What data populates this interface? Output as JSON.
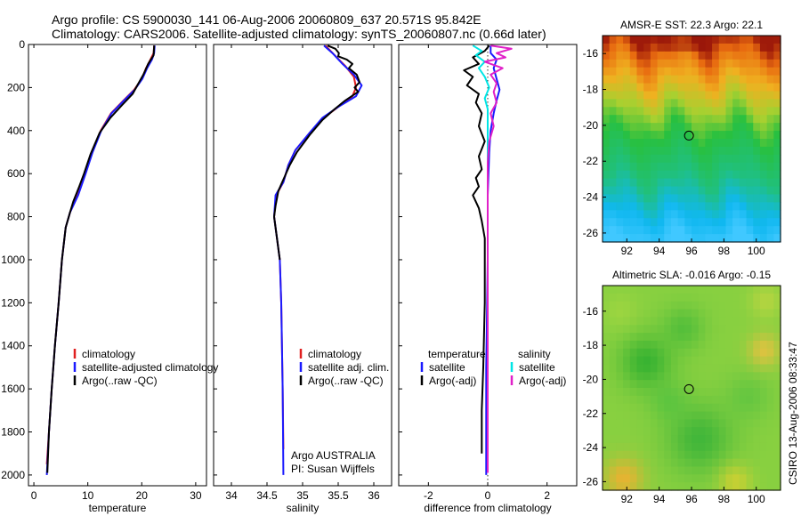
{
  "header": {
    "line1": "Argo profile: CS 5900030_141 06-Aug-2006 20060809_637 20.571S 95.842E",
    "line2": "Climatology: CARS2006. Satellite-adjusted climatology: synTS_20060807.nc (0.66d later)"
  },
  "footer_stamp": "CSIRO 13-Aug-2006 08:33:47",
  "colors": {
    "climatology": "#e02020",
    "satellite": "#1a1aff",
    "argo": "#000000",
    "salinity_sat": "#00e5e5",
    "salinity_argo": "#e020c8"
  },
  "chart_data": [
    {
      "type": "line",
      "xlabel": "temperature",
      "xlim": [
        -1,
        32
      ],
      "ylim": [
        2050,
        0
      ],
      "xticks": [
        "0",
        "10",
        "20",
        "30"
      ],
      "xtick_values": [
        0,
        10,
        20,
        30
      ],
      "yticks": [
        "0",
        "200",
        "400",
        "600",
        "800",
        "1000",
        "1200",
        "1400",
        "1600",
        "1800",
        "2000"
      ],
      "ytick_values": [
        0,
        200,
        400,
        600,
        800,
        1000,
        1200,
        1400,
        1600,
        1800,
        2000
      ],
      "legend": {
        "placement": "lower-right",
        "entries": [
          {
            "name": "climatology",
            "color": "#e02020"
          },
          {
            "name": "satellite-adjusted climatology",
            "color": "#1a1aff"
          },
          {
            "name": "Argo(..raw -QC)",
            "color": "#000000"
          }
        ]
      },
      "series": [
        {
          "name": "climatology",
          "color": "#e02020",
          "points": [
            [
              22.3,
              5
            ],
            [
              22.2,
              40
            ],
            [
              21.6,
              70
            ],
            [
              20.8,
              110
            ],
            [
              20,
              160
            ],
            [
              18.6,
              210
            ],
            [
              16.6,
              260
            ],
            [
              14.3,
              320
            ],
            [
              12.4,
              400
            ],
            [
              10.8,
              500
            ],
            [
              9.5,
              600
            ],
            [
              8.1,
              700
            ],
            [
              6.7,
              780
            ],
            [
              5.9,
              850
            ],
            [
              5.2,
              1000
            ],
            [
              4.6,
              1200
            ],
            [
              3.9,
              1400
            ],
            [
              3.3,
              1600
            ],
            [
              2.8,
              1800
            ],
            [
              2.4,
              1950
            ]
          ]
        },
        {
          "name": "satellite-adjusted climatology",
          "color": "#1a1aff",
          "points": [
            [
              22.4,
              5
            ],
            [
              22.3,
              40
            ],
            [
              21.9,
              70
            ],
            [
              21,
              110
            ],
            [
              20.1,
              160
            ],
            [
              18.7,
              210
            ],
            [
              16.7,
              260
            ],
            [
              14.4,
              320
            ],
            [
              12.5,
              400
            ],
            [
              10.9,
              500
            ],
            [
              9.6,
              600
            ],
            [
              8.2,
              700
            ],
            [
              6.7,
              780
            ],
            [
              5.9,
              850
            ],
            [
              5.2,
              1000
            ],
            [
              4.6,
              1200
            ],
            [
              3.9,
              1400
            ],
            [
              3.3,
              1600
            ],
            [
              2.8,
              1800
            ],
            [
              2.4,
              2000
            ]
          ]
        },
        {
          "name": "Argo(..raw -QC)",
          "color": "#000000",
          "points": [
            [
              22.3,
              5
            ],
            [
              22.2,
              50
            ],
            [
              21.2,
              90
            ],
            [
              20.3,
              140
            ],
            [
              19.4,
              180
            ],
            [
              18.3,
              230
            ],
            [
              16.4,
              280
            ],
            [
              14.2,
              340
            ],
            [
              12.2,
              410
            ],
            [
              10.5,
              510
            ],
            [
              9.3,
              600
            ],
            [
              8.4,
              660
            ],
            [
              7.3,
              730
            ],
            [
              6.7,
              780
            ],
            [
              5.9,
              850
            ],
            [
              5.2,
              1000
            ],
            [
              4.6,
              1200
            ],
            [
              3.9,
              1400
            ],
            [
              3.3,
              1600
            ],
            [
              2.8,
              1800
            ],
            [
              2.5,
              1990
            ]
          ]
        }
      ]
    },
    {
      "type": "line",
      "xlabel": "salinity",
      "xlim": [
        33.75,
        36.25
      ],
      "ylim": [
        2050,
        0
      ],
      "xticks": [
        "34",
        "34.5",
        "35",
        "35.5",
        "36"
      ],
      "xtick_values": [
        34,
        34.5,
        35,
        35.5,
        36
      ],
      "legend": {
        "placement": "lower-right",
        "entries": [
          {
            "name": "climatology",
            "color": "#e02020"
          },
          {
            "name": "satellite adj. clim.",
            "color": "#1a1aff"
          },
          {
            "name": "Argo(..raw -QC)",
            "color": "#000000"
          }
        ]
      },
      "annotations": [
        "Argo AUSTRALIA",
        "PI: Susan Wijffels"
      ],
      "series": [
        {
          "name": "climatology",
          "color": "#e02020",
          "points": [
            [
              35.32,
              5
            ],
            [
              35.45,
              50
            ],
            [
              35.6,
              100
            ],
            [
              35.72,
              150
            ],
            [
              35.75,
              200
            ],
            [
              35.7,
              240
            ],
            [
              35.5,
              290
            ],
            [
              35.3,
              340
            ],
            [
              35.1,
              410
            ],
            [
              34.9,
              490
            ],
            [
              34.8,
              560
            ],
            [
              34.73,
              640
            ],
            [
              34.63,
              700
            ],
            [
              34.6,
              800
            ],
            [
              34.64,
              900
            ],
            [
              34.68,
              1000
            ],
            [
              34.7,
              1200
            ],
            [
              34.71,
              1400
            ],
            [
              34.72,
              1600
            ],
            [
              34.73,
              1880
            ]
          ]
        },
        {
          "name": "satellite adj. clim.",
          "color": "#1a1aff",
          "points": [
            [
              35.3,
              5
            ],
            [
              35.42,
              40
            ],
            [
              35.56,
              90
            ],
            [
              35.72,
              140
            ],
            [
              35.83,
              190
            ],
            [
              35.75,
              240
            ],
            [
              35.5,
              290
            ],
            [
              35.28,
              340
            ],
            [
              35.1,
              410
            ],
            [
              34.9,
              490
            ],
            [
              34.8,
              560
            ],
            [
              34.73,
              640
            ],
            [
              34.62,
              700
            ],
            [
              34.6,
              800
            ],
            [
              34.64,
              900
            ],
            [
              34.68,
              1000
            ],
            [
              34.7,
              1200
            ],
            [
              34.71,
              1400
            ],
            [
              34.72,
              1600
            ],
            [
              34.73,
              2000
            ]
          ]
        },
        {
          "name": "Argo(..raw -QC)",
          "color": "#000000",
          "points": [
            [
              35.35,
              5
            ],
            [
              35.46,
              20
            ],
            [
              35.51,
              40
            ],
            [
              35.5,
              55
            ],
            [
              35.62,
              70
            ],
            [
              35.7,
              90
            ],
            [
              35.65,
              110
            ],
            [
              35.76,
              140
            ],
            [
              35.8,
              175
            ],
            [
              35.73,
              200
            ],
            [
              35.78,
              220
            ],
            [
              35.6,
              260
            ],
            [
              35.45,
              300
            ],
            [
              35.28,
              350
            ],
            [
              35.1,
              420
            ],
            [
              34.92,
              500
            ],
            [
              34.82,
              560
            ],
            [
              34.74,
              620
            ],
            [
              34.66,
              680
            ],
            [
              34.62,
              750
            ],
            [
              34.6,
              800
            ],
            [
              34.64,
              900
            ],
            [
              34.68,
              1000
            ]
          ]
        }
      ]
    },
    {
      "type": "line",
      "xlabel": "difference from climatology",
      "xlim": [
        -3,
        3
      ],
      "ylim": [
        2050,
        0
      ],
      "xticks": [
        "-2",
        "0",
        "2"
      ],
      "xtick_values": [
        -2,
        0,
        2
      ],
      "legend": {
        "placement": "lower-center",
        "headers": [
          "temperature",
          "salinity"
        ],
        "entries": [
          {
            "name": "satellite",
            "color": "#1a1aff"
          },
          {
            "name": "Argo(-adj)",
            "color": "#000000"
          },
          {
            "name": "satellite",
            "color": "#00e5e5"
          },
          {
            "name": "Argo(-adj)",
            "color": "#e020c8"
          }
        ]
      },
      "series": [
        {
          "name": "satellite (temperature)",
          "color": "#1a1aff",
          "points": [
            [
              0.1,
              5
            ],
            [
              0.1,
              40
            ],
            [
              0.3,
              70
            ],
            [
              0.2,
              110
            ],
            [
              0.3,
              160
            ],
            [
              0.4,
              210
            ],
            [
              0.3,
              260
            ],
            [
              0.2,
              320
            ],
            [
              0.1,
              400
            ],
            [
              0.05,
              500
            ],
            [
              0,
              700
            ],
            [
              0,
              1000
            ],
            [
              -0.05,
              1500
            ],
            [
              -0.05,
              2000
            ]
          ]
        },
        {
          "name": "Argo(-adj) (temperature)",
          "color": "#000000",
          "points": [
            [
              0.05,
              5
            ],
            [
              -0.1,
              30
            ],
            [
              -0.5,
              60
            ],
            [
              -0.3,
              90
            ],
            [
              -0.8,
              120
            ],
            [
              -0.5,
              150
            ],
            [
              -0.7,
              190
            ],
            [
              -0.3,
              230
            ],
            [
              -0.4,
              270
            ],
            [
              -0.2,
              320
            ],
            [
              -0.3,
              380
            ],
            [
              -0.1,
              450
            ],
            [
              -0.3,
              520
            ],
            [
              -0.2,
              580
            ],
            [
              -0.4,
              620
            ],
            [
              -0.3,
              660
            ],
            [
              -0.5,
              700
            ],
            [
              -0.3,
              760
            ],
            [
              -0.2,
              820
            ],
            [
              -0.1,
              900
            ],
            [
              -0.1,
              1200
            ],
            [
              -0.15,
              1500
            ],
            [
              -0.2,
              1700
            ],
            [
              -0.2,
              1900
            ]
          ]
        },
        {
          "name": "satellite (salinity)",
          "color": "#00e5e5",
          "points": [
            [
              -0.5,
              5
            ],
            [
              -0.2,
              30
            ],
            [
              -0.4,
              50
            ],
            [
              -0.1,
              80
            ],
            [
              -0.3,
              110
            ],
            [
              -0.1,
              150
            ],
            [
              0.05,
              200
            ],
            [
              -0.1,
              250
            ],
            [
              0,
              300
            ],
            [
              0,
              400
            ],
            [
              0,
              600
            ],
            [
              0,
              1000
            ],
            [
              0,
              1500
            ],
            [
              0,
              1990
            ]
          ]
        },
        {
          "name": "Argo(-adj) (salinity)",
          "color": "#e020c8",
          "points": [
            [
              0.1,
              5
            ],
            [
              0.8,
              20
            ],
            [
              0.3,
              40
            ],
            [
              0.6,
              60
            ],
            [
              -0.1,
              80
            ],
            [
              0.5,
              110
            ],
            [
              0.1,
              140
            ],
            [
              0.3,
              180
            ],
            [
              0.2,
              220
            ],
            [
              0.3,
              270
            ],
            [
              0.1,
              320
            ],
            [
              0.2,
              380
            ],
            [
              0.05,
              450
            ],
            [
              0,
              550
            ],
            [
              0,
              1000
            ],
            [
              0,
              1500
            ],
            [
              0,
              1990
            ]
          ]
        }
      ]
    },
    {
      "type": "heatmap",
      "title": "AMSR-E SST: 22.3 Argo: 22.1",
      "xlim": [
        90.5,
        101.5
      ],
      "ylim": [
        -26.5,
        -15
      ],
      "xticks": [
        "92",
        "94",
        "96",
        "98",
        "100"
      ],
      "xtick_values": [
        92,
        94,
        96,
        98,
        100
      ],
      "yticks": [
        "-16",
        "-18",
        "-20",
        "-22",
        "-24",
        "-26"
      ],
      "ytick_values": [
        -16,
        -18,
        -20,
        -22,
        -24,
        -26
      ],
      "marker": {
        "x": 95.842,
        "y": -20.571
      },
      "color_bands": [
        {
          "y": -15,
          "color": "#9e1a0a"
        },
        {
          "y": -16,
          "color": "#e86a10"
        },
        {
          "y": -17.5,
          "color": "#f0b020"
        },
        {
          "y": -19,
          "color": "#a8d030"
        },
        {
          "y": -20.5,
          "color": "#28c040"
        },
        {
          "y": -23,
          "color": "#20c080"
        },
        {
          "y": -25,
          "color": "#10b8f0"
        },
        {
          "y": -26.5,
          "color": "#40c8ff"
        }
      ]
    },
    {
      "type": "heatmap",
      "title": "Altimetric SLA: -0.016 Argo: -0.15",
      "xlim": [
        90.5,
        101.5
      ],
      "ylim": [
        -26.5,
        -14.5
      ],
      "xticks": [
        "92",
        "94",
        "96",
        "98",
        "100"
      ],
      "xtick_values": [
        92,
        94,
        96,
        98,
        100
      ],
      "yticks": [
        "-16",
        "-18",
        "-20",
        "-22",
        "-24",
        "-26"
      ],
      "ytick_values": [
        -16,
        -18,
        -20,
        -22,
        -24,
        -26
      ],
      "marker": {
        "x": 95.842,
        "y": -20.571
      },
      "base_color": "#88d040"
    }
  ]
}
